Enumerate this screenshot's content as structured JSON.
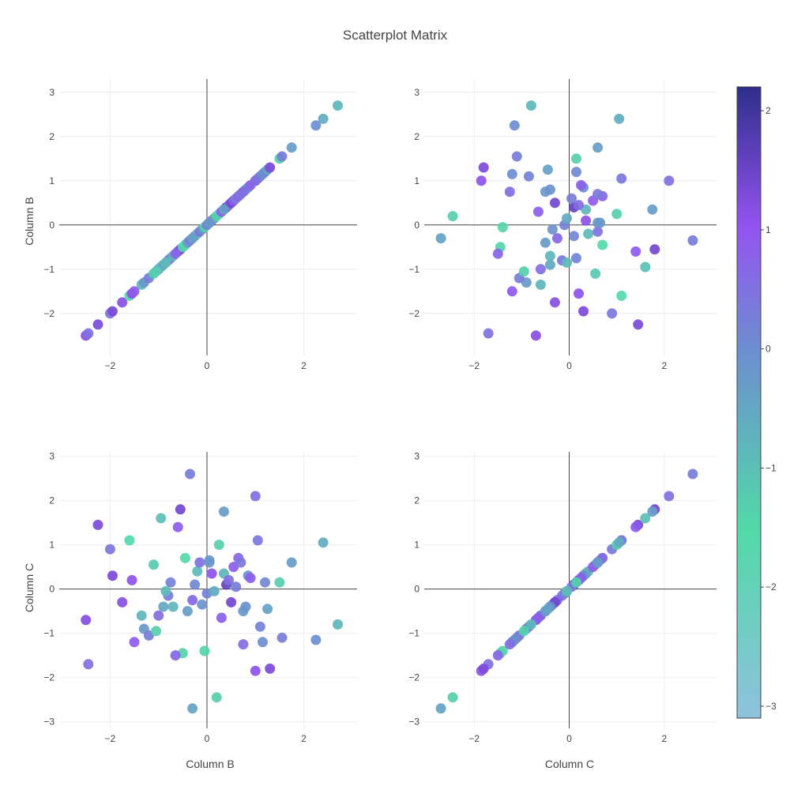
{
  "chart_data": {
    "type": "scatter",
    "title": "Scatterplot Matrix",
    "xlabels": [
      "Column B",
      "Column C"
    ],
    "ylabels": [
      "Column B",
      "Column C"
    ],
    "xticks": [
      "−2",
      "0",
      "2"
    ],
    "yticks_top": [
      "−2",
      "−1",
      "0",
      "1",
      "2",
      "3"
    ],
    "yticks_bottom": [
      "−3",
      "−2",
      "−1",
      "0",
      "1",
      "2",
      "3"
    ],
    "colorbar": {
      "ticks": [
        "2",
        "1",
        "0",
        "−1",
        "−2",
        "−3"
      ],
      "range": [
        -3.1,
        2.2
      ],
      "colorscale": [
        "#8ec1dc",
        "#52d9a8",
        "#6c8fcf",
        "#9353f0",
        "#2e2f8a"
      ]
    },
    "axes": {
      "x_range": [
        -3.05,
        3.1
      ],
      "y_top_range": [
        -2.95,
        3.3
      ],
      "y_bottom_range": [
        -3.15,
        3.1
      ]
    },
    "column_b": [
      -2.5,
      -2.45,
      -2.25,
      -2.0,
      -1.95,
      -1.75,
      -1.6,
      -1.55,
      -1.5,
      -1.35,
      -1.3,
      -1.2,
      -1.1,
      -1.0,
      -0.95,
      -0.9,
      -0.8,
      -0.75,
      -0.7,
      -0.6,
      -0.55,
      -0.5,
      -0.45,
      -0.4,
      -0.3,
      -0.25,
      -0.2,
      -0.15,
      -0.1,
      -0.05,
      0.0,
      0.05,
      0.1,
      0.15,
      0.2,
      0.25,
      0.3,
      0.35,
      0.4,
      0.45,
      0.5,
      0.55,
      0.6,
      0.65,
      0.7,
      0.75,
      0.8,
      0.85,
      0.9,
      1.0,
      1.05,
      1.1,
      1.15,
      1.2,
      1.25,
      1.5,
      1.55,
      1.75,
      2.25,
      2.4,
      2.7,
      -0.85,
      -0.65,
      -0.35,
      0.05,
      0.35,
      0.75,
      1.0,
      1.3,
      -1.05,
      -0.3
    ],
    "column_c": [
      -0.7,
      -1.7,
      1.45,
      0.9,
      0.3,
      -0.3,
      1.1,
      0.2,
      -1.2,
      -0.6,
      -0.9,
      -1.05,
      0.55,
      -0.6,
      1.6,
      -0.4,
      -0.15,
      0.15,
      -0.4,
      1.4,
      1.8,
      -1.45,
      0.7,
      -0.5,
      -0.25,
      0.1,
      0.4,
      0.6,
      -0.35,
      -1.4,
      -0.1,
      0.65,
      0.35,
      -0.05,
      -2.45,
      1.0,
      -0.65,
      0.35,
      0.1,
      0.2,
      -0.3,
      0.5,
      0.05,
      0.7,
      0.6,
      -0.5,
      -0.4,
      0.3,
      0.25,
      -1.85,
      1.1,
      -0.85,
      -1.2,
      0.15,
      -0.45,
      0.15,
      -1.1,
      0.6,
      -1.15,
      1.05,
      -0.8,
      -0.05,
      -1.5,
      2.6,
      0.6,
      1.75,
      -1.25,
      2.1,
      -1.8,
      -0.95,
      -2.7
    ],
    "color": [
      1.2,
      0.5,
      1.3,
      0.4,
      1.3,
      1.2,
      -1.6,
      1.1,
      0.9,
      -0.8,
      -0.2,
      0.3,
      -1.2,
      0.6,
      -1.0,
      -0.5,
      0.4,
      0.2,
      -0.8,
      0.9,
      1.4,
      -1.4,
      -1.5,
      -0.3,
      0.7,
      0.1,
      -0.9,
      0.5,
      -0.1,
      -1.4,
      0.2,
      -0.2,
      1.1,
      -0.6,
      -1.3,
      -1.3,
      0.8,
      -0.8,
      1.6,
      0.6,
      1.4,
      0.9,
      0.3,
      0.7,
      0.4,
      -0.2,
      -0.1,
      0.0,
      0.8,
      1.1,
      0.4,
      0.2,
      0.0,
      0.1,
      -0.4,
      -1.3,
      0.3,
      -0.3,
      0.0,
      -0.6,
      -0.8,
      -0.9,
      0.7,
      0.3,
      -0.2,
      -0.3,
      0.6,
      0.5,
      1.3,
      -1.3,
      -0.4
    ]
  }
}
